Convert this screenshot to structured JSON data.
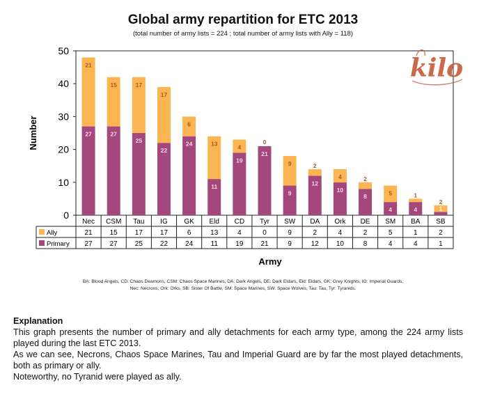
{
  "chart_data": {
    "type": "bar",
    "stacked": true,
    "title": "Global army repartition for ETC 2013",
    "subtitle": "(total number of army lists = 224 ; total number of army lists with Ally = 118)",
    "xlabel": "Army",
    "ylabel": "Number",
    "ylim": [
      0,
      50
    ],
    "yticks": [
      0,
      10,
      20,
      30,
      40,
      50
    ],
    "grid": false,
    "categories": [
      "Nec",
      "CSM",
      "Tau",
      "IG",
      "GK",
      "Eld",
      "CD",
      "Tyr",
      "SW",
      "DA",
      "Ork",
      "DE",
      "SM",
      "BA",
      "SB"
    ],
    "series": [
      {
        "name": "Primary",
        "color": "#a3477c",
        "values": [
          27,
          27,
          25,
          22,
          24,
          11,
          19,
          21,
          9,
          12,
          10,
          8,
          4,
          4,
          1
        ]
      },
      {
        "name": "Ally",
        "color": "#fbb552",
        "values": [
          21,
          15,
          17,
          17,
          6,
          13,
          4,
          0,
          9,
          2,
          4,
          2,
          5,
          1,
          2
        ]
      }
    ],
    "data_table": {
      "row_order": [
        "Ally",
        "Primary"
      ]
    }
  },
  "colors": {
    "primary": "#a3477c",
    "ally": "#fbb552",
    "primary_label": "#f6d6e6",
    "ally_label": "#b2561b",
    "logo": "#c4502a"
  },
  "abbreviations": [
    "BA: Blood Angels, CD: Chaos Deamons, CSM: Chaos Space Marines, DA: Dark Angels, DE: Dark Eldars, Eld: Eldars, GK: Grey Knights, IG: Imperial Guards,",
    "Nec: Necrons, Ork: Orks, SB: Sister Of Battle, SM: Space Marines, SW: Space Wolves, Tau: Tau, Tyr: Tyranids."
  ],
  "logo_text": "kilo",
  "explanation": {
    "heading": "Explanation",
    "paragraphs": [
      "This graph presents the number of primary and ally detachments for each army type, among the 224 army lists played during the last ETC 2013.",
      "As we can see, Necrons, Chaos Space Marines, Tau and Imperial Guard are by far the most played detachments, both as primary or ally.",
      "Noteworthy, no Tyranid were played as ally."
    ]
  }
}
